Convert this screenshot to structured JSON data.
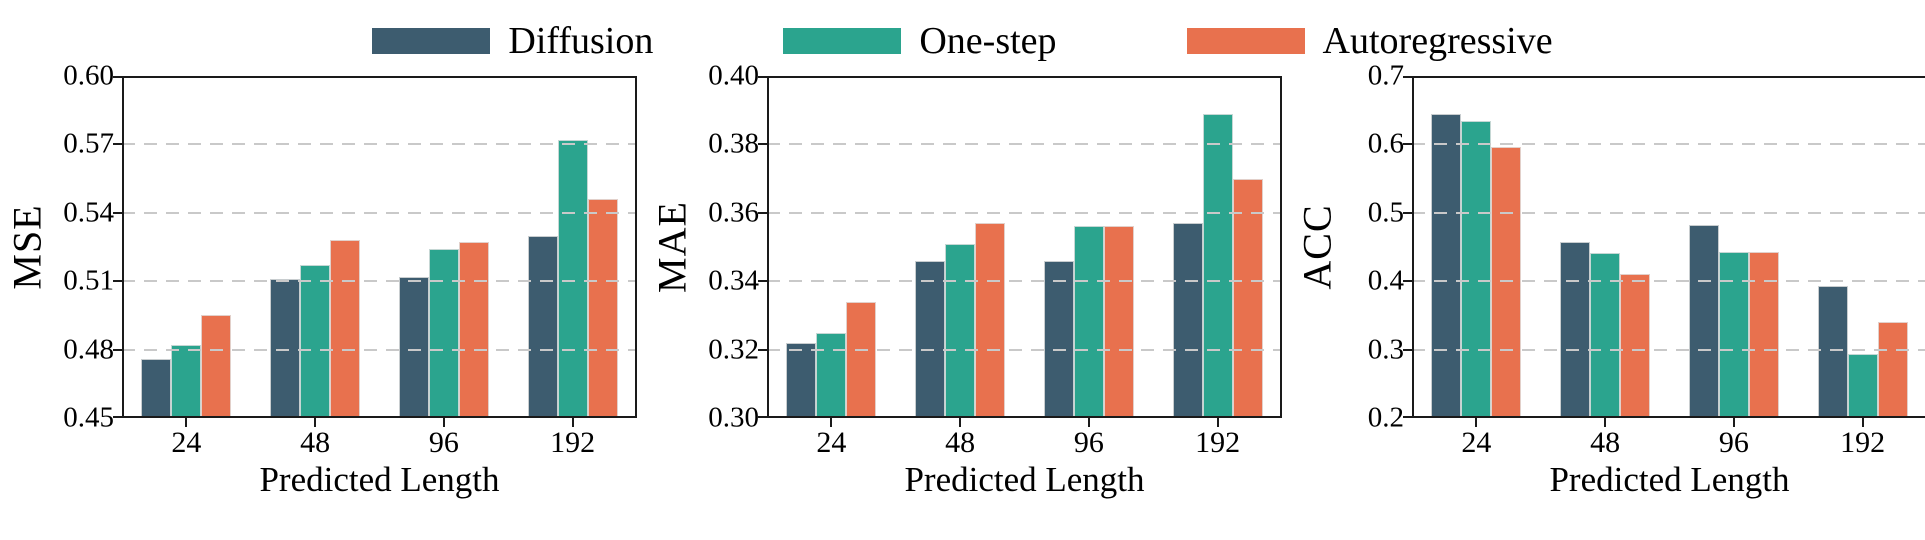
{
  "legend": {
    "items": [
      {
        "label": "Diffusion",
        "color": "#3D5C6F"
      },
      {
        "label": "One-step",
        "color": "#2BA48E"
      },
      {
        "label": "Autoregressive",
        "color": "#E8714E"
      }
    ]
  },
  "style": {
    "gridline_color": "#c9c9c9",
    "spine_color": "#1a1a1a",
    "grid": "horizontal dashed, drawn above bars",
    "legend_position": "top center, frameless"
  },
  "chart_data": [
    {
      "type": "bar",
      "title": "",
      "ylabel": "MSE",
      "xlabel": "Predicted Length",
      "categories": [
        "24",
        "48",
        "96",
        "192"
      ],
      "series": [
        {
          "name": "Diffusion",
          "values": [
            0.476,
            0.511,
            0.512,
            0.53
          ]
        },
        {
          "name": "One-step",
          "values": [
            0.482,
            0.517,
            0.524,
            0.572
          ]
        },
        {
          "name": "Autoregressive",
          "values": [
            0.495,
            0.528,
            0.527,
            0.546
          ]
        }
      ],
      "ylim": [
        0.45,
        0.6
      ],
      "yticks": [
        0.45,
        0.48,
        0.51,
        0.54,
        0.57,
        0.6
      ],
      "ytick_labels": [
        "0.45",
        "0.48",
        "0.51",
        "0.54",
        "0.57",
        "0.60"
      ]
    },
    {
      "type": "bar",
      "title": "",
      "ylabel": "MAE",
      "xlabel": "Predicted Length",
      "categories": [
        "24",
        "48",
        "96",
        "192"
      ],
      "series": [
        {
          "name": "Diffusion",
          "values": [
            0.322,
            0.346,
            0.346,
            0.357
          ]
        },
        {
          "name": "One-step",
          "values": [
            0.325,
            0.351,
            0.356,
            0.389
          ]
        },
        {
          "name": "Autoregressive",
          "values": [
            0.334,
            0.357,
            0.356,
            0.37
          ]
        }
      ],
      "ylim": [
        0.3,
        0.4
      ],
      "yticks": [
        0.3,
        0.32,
        0.34,
        0.36,
        0.38,
        0.4
      ],
      "ytick_labels": [
        "0.30",
        "0.32",
        "0.34",
        "0.36",
        "0.38",
        "0.40"
      ]
    },
    {
      "type": "bar",
      "title": "",
      "ylabel": "ACC",
      "xlabel": "Predicted Length",
      "categories": [
        "24",
        "48",
        "96",
        "192"
      ],
      "series": [
        {
          "name": "Diffusion",
          "values": [
            0.645,
            0.458,
            0.482,
            0.393
          ]
        },
        {
          "name": "One-step",
          "values": [
            0.634,
            0.441,
            0.442,
            0.293
          ]
        },
        {
          "name": "Autoregressive",
          "values": [
            0.596,
            0.41,
            0.442,
            0.34
          ]
        }
      ],
      "ylim": [
        0.2,
        0.7
      ],
      "yticks": [
        0.2,
        0.3,
        0.4,
        0.5,
        0.6,
        0.7
      ],
      "ytick_labels": [
        "0.2",
        "0.3",
        "0.4",
        "0.5",
        "0.6",
        "0.7"
      ]
    }
  ]
}
